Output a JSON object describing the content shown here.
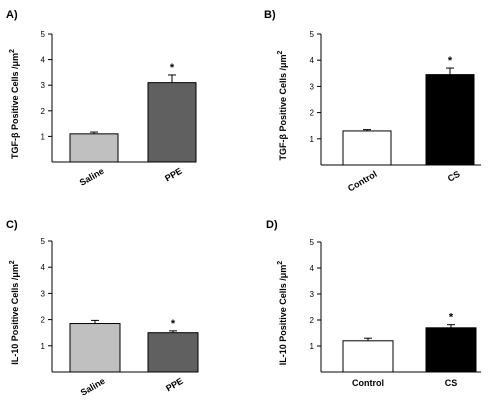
{
  "chart_data": [
    {
      "type": "bar",
      "panel": "A)",
      "ylabel": "TGF-β Positive Cells /μm",
      "ylabel_sup": "2",
      "ylim": [
        0,
        5
      ],
      "yticks": [
        "1",
        "2",
        "3",
        "4",
        "5"
      ],
      "categories": [
        "Saline",
        "PPE"
      ],
      "values": [
        1.1,
        3.1
      ],
      "errors": [
        0.07,
        0.3
      ],
      "significance": [
        "",
        "*"
      ],
      "colors": [
        "#c0c0c0",
        "#606060"
      ],
      "grid": false
    },
    {
      "type": "bar",
      "panel": "B)",
      "ylabel": "TGF-β Positive Cells /μm",
      "ylabel_sup": "2",
      "ylim": [
        0,
        5
      ],
      "yticks": [
        "1",
        "2",
        "3",
        "4",
        "5"
      ],
      "categories": [
        "Control",
        "CS"
      ],
      "values": [
        1.3,
        3.45
      ],
      "errors": [
        0.05,
        0.25
      ],
      "significance": [
        "",
        "*"
      ],
      "colors": [
        "#ffffff",
        "#000000"
      ],
      "grid": false
    },
    {
      "type": "bar",
      "panel": "C)",
      "ylabel": "IL-10 Positive Cells /μm",
      "ylabel_sup": "2",
      "ylim": [
        0,
        5
      ],
      "yticks": [
        "1",
        "2",
        "3",
        "4",
        "5"
      ],
      "categories": [
        "Saline",
        "PPE"
      ],
      "values": [
        1.85,
        1.5
      ],
      "errors": [
        0.12,
        0.07
      ],
      "significance": [
        "",
        "*"
      ],
      "colors": [
        "#c0c0c0",
        "#606060"
      ],
      "grid": false
    },
    {
      "type": "bar",
      "panel": "D)",
      "ylabel": "IL-10 Positive Cells /μm",
      "ylabel_sup": "2",
      "ylim": [
        0,
        5
      ],
      "yticks": [
        "1",
        "2",
        "3",
        "4",
        "5"
      ],
      "categories": [
        "Control",
        "CS"
      ],
      "values": [
        1.2,
        1.7
      ],
      "errors": [
        0.1,
        0.12
      ],
      "significance": [
        "",
        "*"
      ],
      "colors": [
        "#ffffff",
        "#000000"
      ],
      "grid": false
    }
  ]
}
